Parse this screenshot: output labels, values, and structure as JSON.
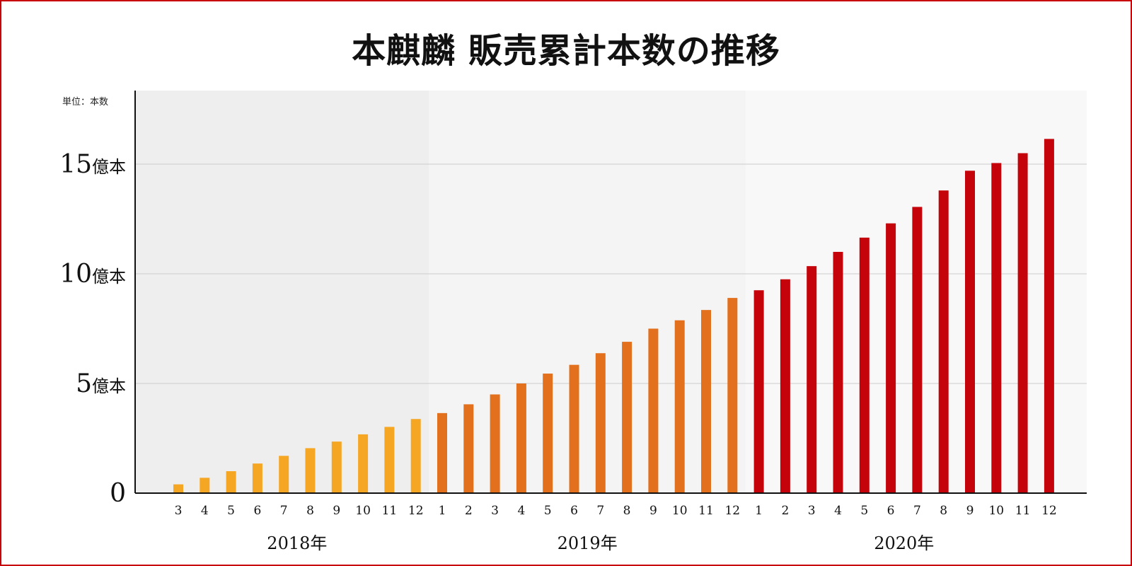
{
  "chart_data": {
    "type": "bar",
    "title": "本麒麟 販売累計本数の推移",
    "unit_label": "単位：本数",
    "xlabel": "",
    "ylabel": "",
    "ylim": [
      0,
      16.5
    ],
    "yticks": [
      {
        "value": 0,
        "label": "0",
        "suffix": ""
      },
      {
        "value": 5,
        "label": "5",
        "suffix": "億本"
      },
      {
        "value": 10,
        "label": "10",
        "suffix": "億本"
      },
      {
        "value": 15,
        "label": "15",
        "suffix": "億本"
      }
    ],
    "grid": true,
    "years": [
      {
        "label": "2018年",
        "band_color": "#eeeeee",
        "bar_color": "#f5a623",
        "months": [
          "3",
          "4",
          "5",
          "6",
          "7",
          "8",
          "9",
          "10",
          "11",
          "12"
        ],
        "values": [
          0.4,
          0.7,
          1.0,
          1.35,
          1.7,
          2.05,
          2.35,
          2.68,
          3.02,
          3.38
        ]
      },
      {
        "label": "2019年",
        "band_color": "#f4f4f4",
        "bar_color": "#e2701c",
        "months": [
          "1",
          "2",
          "3",
          "4",
          "5",
          "6",
          "7",
          "8",
          "9",
          "10",
          "11",
          "12"
        ],
        "values": [
          3.65,
          4.05,
          4.5,
          5.0,
          5.45,
          5.85,
          6.38,
          6.9,
          7.5,
          7.88,
          8.35,
          8.9
        ]
      },
      {
        "label": "2020年",
        "band_color": "#f8f8f8",
        "bar_color": "#c4040a",
        "months": [
          "1",
          "2",
          "3",
          "4",
          "5",
          "6",
          "7",
          "8",
          "9",
          "10",
          "11",
          "12"
        ],
        "values": [
          9.25,
          9.75,
          10.35,
          11.0,
          11.65,
          12.3,
          13.05,
          13.8,
          14.7,
          15.05,
          15.5,
          16.15
        ]
      }
    ]
  }
}
